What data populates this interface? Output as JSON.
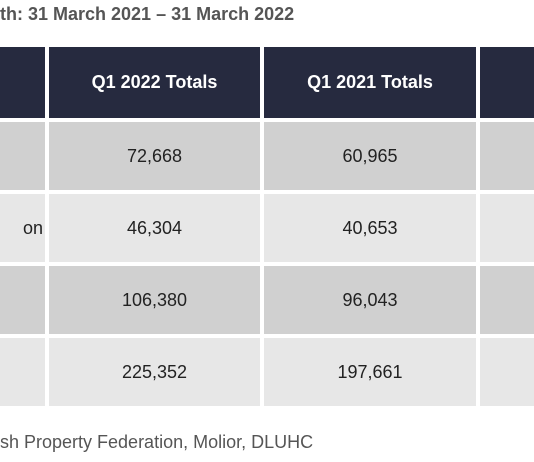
{
  "title": "th: 31 March 2021 – 31 March 2022",
  "table": {
    "headers": [
      "",
      "Q1 2022 Totals",
      "Q1 2021 Totals",
      ""
    ],
    "rows": [
      {
        "label": "",
        "q1_2022": "72,668",
        "q1_2021": "60,965",
        "extra": ""
      },
      {
        "label": "on",
        "q1_2022": "46,304",
        "q1_2021": "40,653",
        "extra": ""
      },
      {
        "label": "",
        "q1_2022": "106,380",
        "q1_2021": "96,043",
        "extra": ""
      },
      {
        "label": "",
        "q1_2022": "225,352",
        "q1_2021": "197,661",
        "extra": ""
      }
    ]
  },
  "source": "sh Property Federation, Molior, DLUHC"
}
